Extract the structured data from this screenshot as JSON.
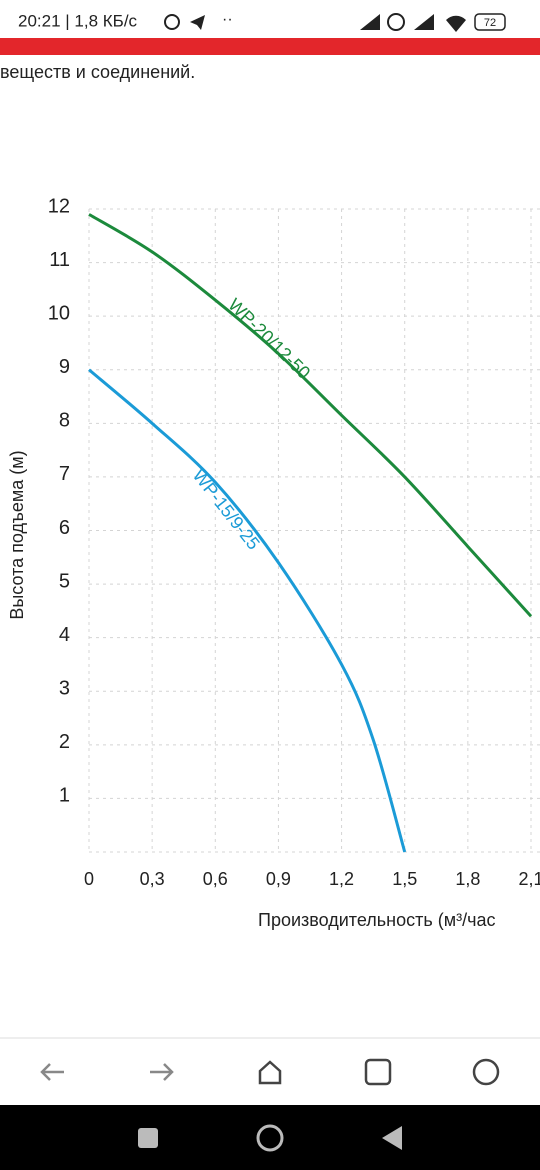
{
  "status_bar": {
    "time_speed": "20:21 | 1,8 КБ/с",
    "battery": "72"
  },
  "page_text": "веществ и соединений.",
  "chart_data": {
    "type": "line",
    "y_label": "Высота подъема (м)",
    "x_label": "Производительность (м³/час",
    "x": [
      0,
      0.3,
      0.6,
      0.9,
      1.2,
      1.35,
      1.5,
      1.8,
      2.1
    ],
    "series": [
      {
        "name": "WP-20/12-50",
        "color": "#1c8a3c",
        "values": [
          11.9,
          11.2,
          10.3,
          9.3,
          8.15,
          null,
          7.0,
          5.7,
          4.4
        ]
      },
      {
        "name": "WP-15/9-25",
        "color": "#1b9bd7",
        "values": [
          9.0,
          8.0,
          6.9,
          5.4,
          3.5,
          2.1,
          0,
          null,
          null
        ]
      }
    ],
    "xlim": [
      0,
      2.1
    ],
    "ylim": [
      0,
      12
    ],
    "xticks": [
      0,
      {
        "value": 0.3,
        "label": "0,3"
      },
      {
        "value": 0.6,
        "label": "0,6"
      },
      {
        "value": 0.9,
        "label": "0,9"
      },
      {
        "value": 1.2,
        "label": "1,2"
      },
      {
        "value": 1.5,
        "label": "1,5"
      },
      {
        "value": 1.8,
        "label": "1,8"
      },
      {
        "value": 2.1,
        "label": "2,1"
      }
    ],
    "yticks": [
      1,
      2,
      3,
      4,
      5,
      6,
      7,
      8,
      9,
      10,
      11,
      12
    ],
    "grid": true
  }
}
